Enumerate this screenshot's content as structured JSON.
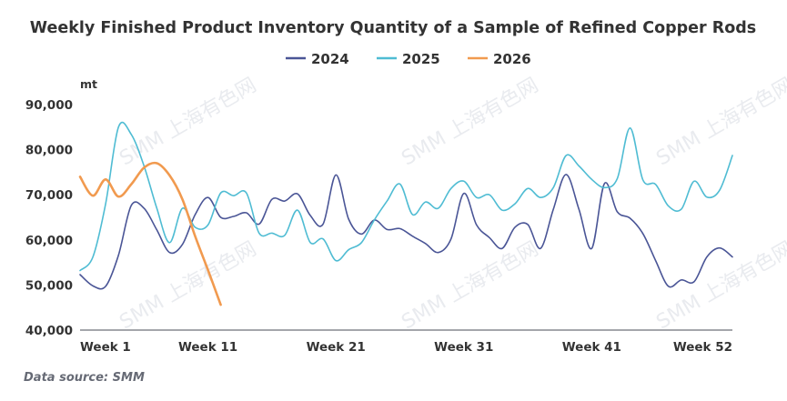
{
  "chart_data": {
    "type": "line",
    "title": "Weekly Finished Product Inventory Quantity of a Sample of Refined Copper Rods",
    "ylabel": "mt",
    "xlabel": "",
    "ylim": [
      40000,
      90000
    ],
    "yticks": [
      40000,
      50000,
      60000,
      70000,
      80000,
      90000
    ],
    "ytick_labels": [
      "40,000",
      "50,000",
      "60,000",
      "70,000",
      "80,000",
      "90,000"
    ],
    "x": [
      1,
      2,
      3,
      4,
      5,
      6,
      7,
      8,
      9,
      10,
      11,
      12,
      13,
      14,
      15,
      16,
      17,
      18,
      19,
      20,
      21,
      22,
      23,
      24,
      25,
      26,
      27,
      28,
      29,
      30,
      31,
      32,
      33,
      34,
      35,
      36,
      37,
      38,
      39,
      40,
      41,
      42,
      43,
      44,
      45,
      46,
      47,
      48,
      49,
      50,
      51,
      52
    ],
    "xticks": [
      1,
      11,
      21,
      31,
      41,
      52
    ],
    "xtick_labels": [
      "Week 1",
      "Week 11",
      "Week 21",
      "Week 31",
      "Week 41",
      "Week 52"
    ],
    "grid": false,
    "legend_position": "top-center",
    "series": [
      {
        "name": "2024",
        "color": "#4a5596",
        "values": [
          52300,
          49800,
          49700,
          56600,
          67600,
          67000,
          62200,
          57200,
          59000,
          65600,
          69400,
          65000,
          65200,
          66000,
          63500,
          69000,
          68600,
          70200,
          65400,
          63500,
          74400,
          64600,
          61300,
          64400,
          62300,
          62500,
          60800,
          59200,
          57200,
          60200,
          70300,
          63300,
          60500,
          58100,
          62800,
          63400,
          58100,
          66800,
          74500,
          66800,
          58100,
          72500,
          66200,
          64800,
          61400,
          55400,
          49700,
          51100,
          50700,
          56200,
          58200,
          56200
        ]
      },
      {
        "name": "2025",
        "color": "#4fbcd3",
        "values": [
          53200,
          56200,
          68000,
          85000,
          83400,
          76400,
          67000,
          59400,
          67000,
          62800,
          63300,
          70400,
          69800,
          70400,
          61500,
          61500,
          61000,
          66600,
          59400,
          60200,
          55400,
          57800,
          59400,
          64400,
          68600,
          72400,
          65600,
          68400,
          67000,
          71400,
          73000,
          69400,
          70000,
          66600,
          68000,
          71400,
          69400,
          71600,
          78700,
          76400,
          73400,
          71600,
          73600,
          84800,
          73300,
          72300,
          67500,
          66800,
          73000,
          69500,
          71000,
          78700
        ]
      },
      {
        "name": "2026",
        "color": "#f19a4f",
        "values": [
          74000,
          69800,
          73400,
          69600,
          72300,
          76000,
          77000,
          74300,
          69000,
          60800,
          53300,
          45600
        ]
      }
    ],
    "source_note": "Data source:  SMM",
    "watermark": "SMM 上海有色网"
  }
}
